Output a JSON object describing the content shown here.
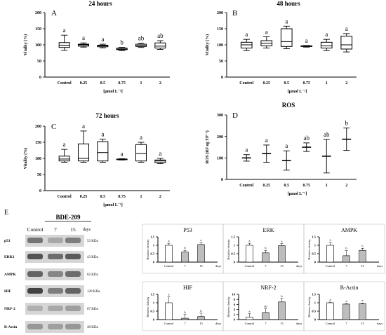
{
  "panels": {
    "A": {
      "letter": "A",
      "title": "24 hours",
      "ylabel": "Vitality (%)",
      "xlabel": "[μmol L⁻¹]"
    },
    "B": {
      "letter": "B",
      "title": "48 hours",
      "ylabel": "Vitality (%)",
      "xlabel": "[μmol L⁻¹]"
    },
    "C": {
      "letter": "C",
      "title": "72 hours",
      "ylabel": "Vitality (%)",
      "xlabel": "[μmol L⁻¹]"
    },
    "D": {
      "letter": "D",
      "title": "ROS",
      "ylabel": "ROS (RF ug TP⁻¹)",
      "xlabel": "[μmol L⁻¹]"
    }
  },
  "blot": {
    "letter": "E",
    "title": "BDE-209",
    "lane_labels": [
      "Control",
      "7",
      "15"
    ],
    "days_label": "days",
    "proteins": [
      "p53",
      "ERK1",
      "AMPK",
      "HIF",
      "NRF-2",
      "B-Actin"
    ],
    "sizes": [
      "53 KDa",
      "43 KDa",
      "62 KDa",
      "120 KDa",
      "67 KDa",
      "40 KDa"
    ]
  },
  "chart_data": [
    {
      "id": "A",
      "type": "box",
      "title": "24 hours",
      "xlabel": "[μmol L⁻¹]",
      "ylabel": "Vitality (%)",
      "ylim": [
        0,
        200
      ],
      "yticks": [
        0,
        50,
        100,
        150,
        200
      ],
      "categories": [
        "Control",
        "0.25",
        "0.5",
        "0.75",
        "1",
        "2"
      ],
      "boxes": [
        {
          "min": 83,
          "q1": 92,
          "median": 99,
          "q3": 107,
          "max": 130
        },
        {
          "min": 93,
          "q1": 96,
          "median": 100,
          "q3": 102,
          "max": 106
        },
        {
          "min": 91,
          "q1": 94,
          "median": 97,
          "q3": 99,
          "max": 102
        },
        {
          "min": 82,
          "q1": 85,
          "median": 87,
          "q3": 90,
          "max": 92
        },
        {
          "min": 92,
          "q1": 95,
          "median": 98,
          "q3": 102,
          "max": 105
        },
        {
          "min": 86,
          "q1": 90,
          "median": 96,
          "q3": 106,
          "max": 113
        }
      ],
      "letters": [
        "a",
        "a",
        "a",
        "b",
        "ab",
        "ab"
      ]
    },
    {
      "id": "B",
      "type": "box",
      "title": "48 hours",
      "xlabel": "[μmol L⁻¹]",
      "ylabel": "Vitality (%)",
      "ylim": [
        0,
        200
      ],
      "yticks": [
        0,
        50,
        100,
        150,
        200
      ],
      "categories": [
        "Control",
        "0.25",
        "0.5",
        "0.75",
        "1",
        "2"
      ],
      "boxes": [
        {
          "min": 82,
          "q1": 90,
          "median": 100,
          "q3": 108,
          "max": 117
        },
        {
          "min": 90,
          "q1": 97,
          "median": 105,
          "q3": 113,
          "max": 125
        },
        {
          "min": 88,
          "q1": 95,
          "median": 110,
          "q3": 150,
          "max": 158
        },
        {
          "min": 93,
          "q1": 95,
          "median": 96,
          "q3": 97,
          "max": 98
        },
        {
          "min": 82,
          "q1": 90,
          "median": 97,
          "q3": 108,
          "max": 117
        },
        {
          "min": 78,
          "q1": 87,
          "median": 100,
          "q3": 127,
          "max": 135
        }
      ],
      "letters": [
        "a",
        "a",
        "a",
        "a",
        "a",
        "a"
      ]
    },
    {
      "id": "C",
      "type": "box",
      "title": "72 hours",
      "xlabel": "[μmol L⁻¹]",
      "ylabel": "Vitality (%)",
      "ylim": [
        0,
        200
      ],
      "yticks": [
        0,
        50,
        100,
        150,
        200
      ],
      "categories": [
        "Control",
        "0.25",
        "0.5",
        "0.75",
        "1",
        "2"
      ],
      "boxes": [
        {
          "min": 88,
          "q1": 92,
          "median": 98,
          "q3": 107,
          "max": 128
        },
        {
          "min": 88,
          "q1": 92,
          "median": 100,
          "q3": 145,
          "max": 185
        },
        {
          "min": 88,
          "q1": 92,
          "median": 118,
          "q3": 152,
          "max": 160
        },
        {
          "min": 95,
          "q1": 96,
          "median": 97,
          "q3": 98,
          "max": 99
        },
        {
          "min": 88,
          "q1": 92,
          "median": 115,
          "q3": 143,
          "max": 150
        },
        {
          "min": 84,
          "q1": 87,
          "median": 92,
          "q3": 95,
          "max": 100
        }
      ],
      "letters": [
        "a",
        "a",
        "a",
        "a",
        "a",
        "a"
      ]
    },
    {
      "id": "D",
      "type": "errorbar",
      "title": "ROS",
      "xlabel": "[μmol L⁻¹]",
      "ylabel": "ROS (RF ug TP⁻¹)",
      "ylim": [
        0,
        300
      ],
      "yticks": [
        0,
        100,
        200,
        300
      ],
      "categories": [
        "Control",
        "0.25",
        "0.5",
        "0.75",
        "1",
        "2"
      ],
      "means": [
        100,
        120,
        88,
        150,
        108,
        187
      ],
      "errors": [
        15,
        40,
        45,
        20,
        78,
        52
      ],
      "letters": [
        "a",
        "a",
        "a",
        "ab",
        "ab",
        "b"
      ]
    },
    {
      "id": "P53",
      "type": "bar",
      "title": "P53",
      "ylabel": "Relative density",
      "xlabel": "days",
      "ylim": [
        0,
        1.5
      ],
      "yticks": [
        0,
        0.5,
        1,
        1.5
      ],
      "categories": [
        "Control",
        "7",
        "15"
      ],
      "values": [
        1.0,
        0.6,
        1.05
      ],
      "errors": [
        0.12,
        0.1,
        0.12
      ],
      "letters": [
        "a",
        "b",
        "a"
      ]
    },
    {
      "id": "ERK",
      "type": "bar",
      "title": "ERK",
      "ylabel": "Relative density",
      "xlabel": "days",
      "ylim": [
        0,
        1.5
      ],
      "yticks": [
        0,
        0.5,
        1,
        1.5
      ],
      "categories": [
        "Control",
        "7",
        "15"
      ],
      "values": [
        1.0,
        0.55,
        0.98
      ],
      "errors": [
        0.12,
        0.15,
        0.12
      ],
      "letters": [
        "a",
        "b",
        "a"
      ]
    },
    {
      "id": "AMPK",
      "type": "bar",
      "title": "AMPK",
      "ylabel": "Relative density",
      "xlabel": "days",
      "ylim": [
        0,
        1.5
      ],
      "yticks": [
        0,
        0.5,
        1,
        1.5
      ],
      "categories": [
        "Control",
        "7",
        "15"
      ],
      "values": [
        1.0,
        0.38,
        0.7
      ],
      "errors": [
        0.18,
        0.3,
        0.12
      ],
      "letters": [
        "a",
        "b",
        "b"
      ]
    },
    {
      "id": "HIF",
      "type": "bar",
      "title": "HIF",
      "ylabel": "Relative density",
      "xlabel": "days",
      "ylim": [
        0,
        1.5
      ],
      "yticks": [
        0,
        0.5,
        1,
        1.5
      ],
      "categories": [
        "Control",
        "7",
        "15"
      ],
      "values": [
        1.0,
        0.08,
        0.18
      ],
      "errors": [
        0.35,
        0.22,
        0.2
      ],
      "letters": [
        "a",
        "b",
        "b"
      ]
    },
    {
      "id": "NRF2",
      "type": "bar",
      "title": "NRF-2",
      "ylabel": "Relative density",
      "xlabel": "days",
      "ylim": [
        0,
        10
      ],
      "yticks": [
        0,
        2,
        4,
        6,
        8,
        10
      ],
      "categories": [
        "Control",
        "7",
        "15"
      ],
      "values": [
        1.0,
        2.8,
        7.0
      ],
      "errors": [
        1.3,
        1.5,
        1.4
      ],
      "letters": [
        "a",
        "ab",
        "b"
      ]
    },
    {
      "id": "BACTIN",
      "type": "bar",
      "title": "B-Actin",
      "ylabel": "Relative density",
      "xlabel": "days",
      "ylim": [
        0,
        1.5
      ],
      "yticks": [
        0,
        0.5,
        1,
        1.5
      ],
      "categories": [
        "Control",
        "7",
        "15"
      ],
      "values": [
        1.0,
        0.92,
        0.95
      ],
      "errors": [
        0.04,
        0.04,
        0.04
      ],
      "letters": [
        "a",
        "a",
        "a"
      ]
    }
  ]
}
